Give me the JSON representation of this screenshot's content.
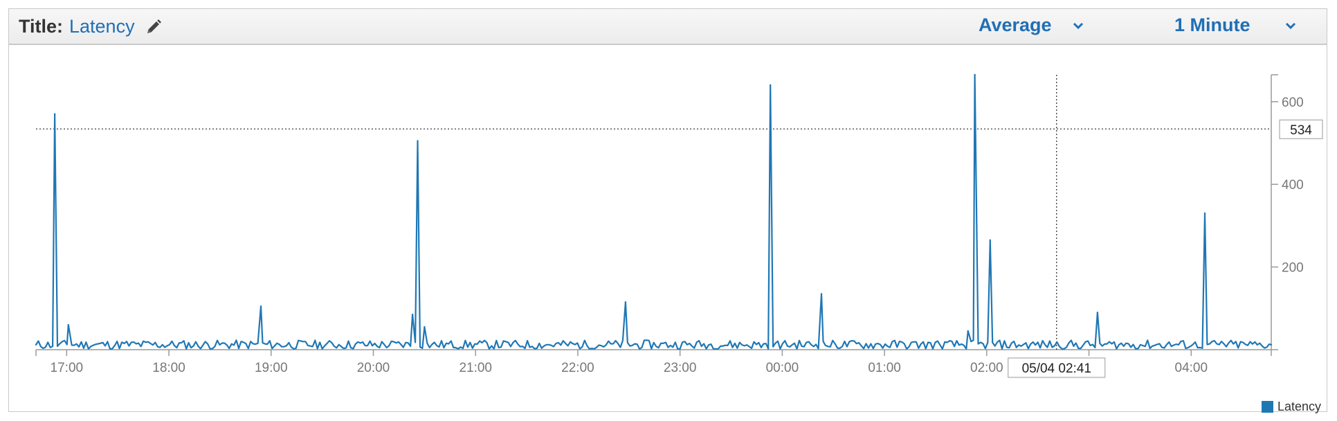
{
  "header": {
    "title_label": "Title:",
    "title_value": "Latency",
    "statistic": "Average",
    "period": "1 Minute"
  },
  "colors": {
    "series": "#1f77b4",
    "link": "#1f6fb5",
    "axis": "#999999",
    "tick_text": "#777777"
  },
  "chart_data": {
    "type": "line",
    "title": "Latency",
    "xlabel": "",
    "ylabel": "",
    "x_ticks": [
      "17:00",
      "18:00",
      "19:00",
      "20:00",
      "21:00",
      "22:00",
      "23:00",
      "00:00",
      "01:00",
      "02:00",
      "03:00",
      "04:00"
    ],
    "y_ticks": [
      200,
      400,
      600
    ],
    "ylim": [
      0,
      665
    ],
    "xlim": [
      "16:42",
      "04:47"
    ],
    "series": [
      {
        "name": "Latency",
        "baseline": 12,
        "points": [
          {
            "x": "16:42",
            "y": 12
          },
          {
            "x": "16:53",
            "y": 570
          },
          {
            "x": "17:01",
            "y": 60
          },
          {
            "x": "18:54",
            "y": 105
          },
          {
            "x": "20:23",
            "y": 85
          },
          {
            "x": "20:26",
            "y": 505
          },
          {
            "x": "20:30",
            "y": 55
          },
          {
            "x": "22:28",
            "y": 115
          },
          {
            "x": "23:53",
            "y": 640
          },
          {
            "x": "00:23",
            "y": 135
          },
          {
            "x": "01:49",
            "y": 45
          },
          {
            "x": "01:53",
            "y": 665
          },
          {
            "x": "02:02",
            "y": 265
          },
          {
            "x": "03:05",
            "y": 90
          },
          {
            "x": "04:08",
            "y": 330
          },
          {
            "x": "04:47",
            "y": 12
          }
        ]
      }
    ],
    "crosshair": {
      "y_label": "534",
      "x_label": "05/04 02:41",
      "y": 534,
      "x": "02:41"
    },
    "legend": {
      "position": "bottom-right",
      "entries": [
        "Latency"
      ]
    },
    "grid": false
  }
}
